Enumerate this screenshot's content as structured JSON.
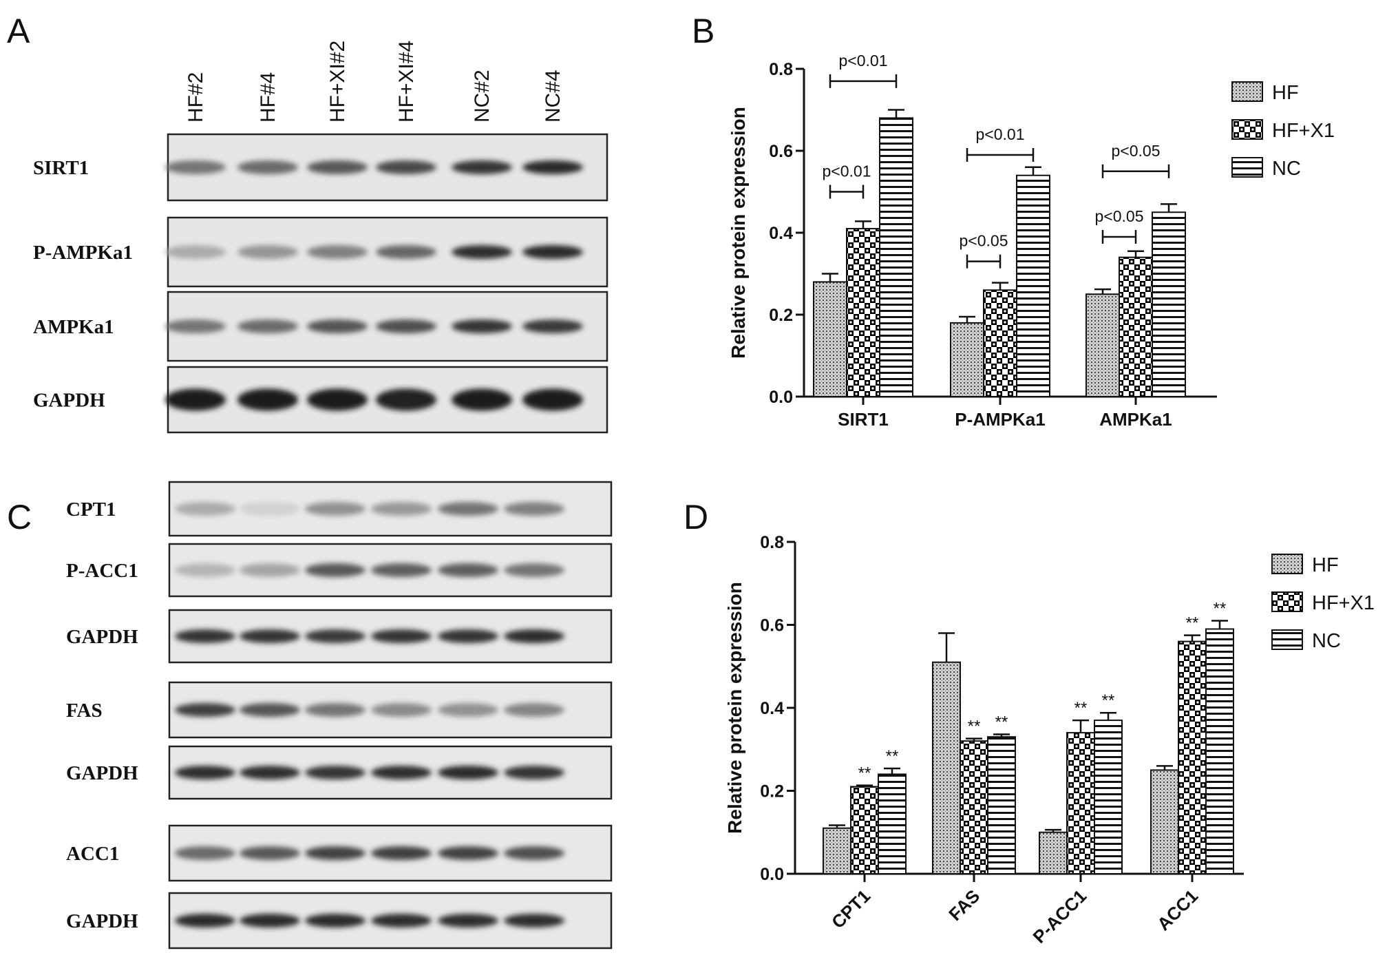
{
  "panels": {
    "A": "A",
    "B": "B",
    "C": "C",
    "D": "D"
  },
  "blot_A": {
    "lanes": [
      "HF#2",
      "HF#4",
      "HF+XI#2",
      "HF+XI#4",
      "NC#2",
      "NC#4"
    ],
    "rows": [
      {
        "label": "SIRT1",
        "intensity": [
          0.55,
          0.6,
          0.68,
          0.75,
          0.85,
          0.9
        ]
      },
      {
        "label": "P-AMPKa1",
        "intensity": [
          0.3,
          0.4,
          0.5,
          0.62,
          0.88,
          0.9
        ]
      },
      {
        "label": "AMPKa1",
        "intensity": [
          0.55,
          0.6,
          0.7,
          0.72,
          0.85,
          0.82
        ]
      },
      {
        "label": "GAPDH",
        "intensity": [
          0.95,
          0.95,
          0.95,
          0.93,
          0.95,
          0.95
        ]
      }
    ]
  },
  "blot_C": {
    "rows": [
      {
        "label": "CPT1",
        "intensity": [
          0.3,
          0.12,
          0.42,
          0.38,
          0.55,
          0.5
        ]
      },
      {
        "label": "P-ACC1",
        "intensity": [
          0.25,
          0.32,
          0.68,
          0.65,
          0.65,
          0.55
        ]
      },
      {
        "label": "GAPDH",
        "intensity": [
          0.85,
          0.85,
          0.82,
          0.85,
          0.85,
          0.88
        ]
      },
      {
        "label": "FAS",
        "intensity": [
          0.8,
          0.7,
          0.55,
          0.45,
          0.42,
          0.48
        ]
      },
      {
        "label": "GAPDH",
        "intensity": [
          0.88,
          0.88,
          0.85,
          0.88,
          0.9,
          0.85
        ]
      },
      {
        "label": "ACC1",
        "intensity": [
          0.6,
          0.68,
          0.78,
          0.8,
          0.78,
          0.72
        ]
      },
      {
        "label": "GAPDH",
        "intensity": [
          0.9,
          0.9,
          0.9,
          0.88,
          0.88,
          0.88
        ]
      }
    ]
  },
  "chart_data": [
    {
      "panel": "B",
      "type": "bar",
      "categories": [
        "SIRT1",
        "P-AMPKa1",
        "AMPKa1"
      ],
      "series": [
        {
          "name": "HF",
          "values": [
            0.28,
            0.18,
            0.25
          ],
          "errors": [
            0.02,
            0.015,
            0.012
          ]
        },
        {
          "name": "HF+X1",
          "values": [
            0.41,
            0.26,
            0.34
          ],
          "errors": [
            0.018,
            0.018,
            0.015
          ]
        },
        {
          "name": "NC",
          "values": [
            0.68,
            0.54,
            0.45
          ],
          "errors": [
            0.02,
            0.02,
            0.02
          ]
        }
      ],
      "ylabel": "Relative protein expression",
      "ylim": [
        0,
        0.8
      ],
      "yticks": [
        "0.0",
        "0.2",
        "0.4",
        "0.6",
        "0.8"
      ],
      "legend_position": "right",
      "comparisons": [
        {
          "category": 0,
          "from": 0,
          "to": 2,
          "level": 0.77,
          "label": "p<0.01"
        },
        {
          "category": 0,
          "from": 0,
          "to": 1,
          "level": 0.5,
          "label": "p<0.01"
        },
        {
          "category": 1,
          "from": 0,
          "to": 2,
          "level": 0.59,
          "label": "p<0.01"
        },
        {
          "category": 1,
          "from": 0,
          "to": 1,
          "level": 0.33,
          "label": "p<0.05"
        },
        {
          "category": 2,
          "from": 0,
          "to": 2,
          "level": 0.55,
          "label": "p<0.05"
        },
        {
          "category": 2,
          "from": 0,
          "to": 1,
          "level": 0.39,
          "label": "p<0.05"
        }
      ]
    },
    {
      "panel": "D",
      "type": "bar",
      "categories": [
        "CPT1",
        "FAS",
        "P-ACC1",
        "ACC1"
      ],
      "series": [
        {
          "name": "HF",
          "values": [
            0.11,
            0.51,
            0.1,
            0.25
          ],
          "errors": [
            0.007,
            0.07,
            0.006,
            0.01
          ]
        },
        {
          "name": "HF+X1",
          "values": [
            0.21,
            0.32,
            0.34,
            0.56
          ],
          "errors": [
            0.003,
            0.006,
            0.03,
            0.015
          ]
        },
        {
          "name": "NC",
          "values": [
            0.24,
            0.33,
            0.37,
            0.59
          ],
          "errors": [
            0.014,
            0.006,
            0.018,
            0.02
          ]
        }
      ],
      "stars": [
        [
          "",
          "**",
          "**"
        ],
        [
          "",
          "**",
          "**"
        ],
        [
          "",
          "**",
          "**"
        ],
        [
          "",
          "**",
          "**"
        ]
      ],
      "ylabel": "Relative protein expression",
      "ylim": [
        0,
        0.8
      ],
      "yticks": [
        "0.0",
        "0.2",
        "0.4",
        "0.6",
        "0.8"
      ],
      "legend_position": "right"
    }
  ]
}
